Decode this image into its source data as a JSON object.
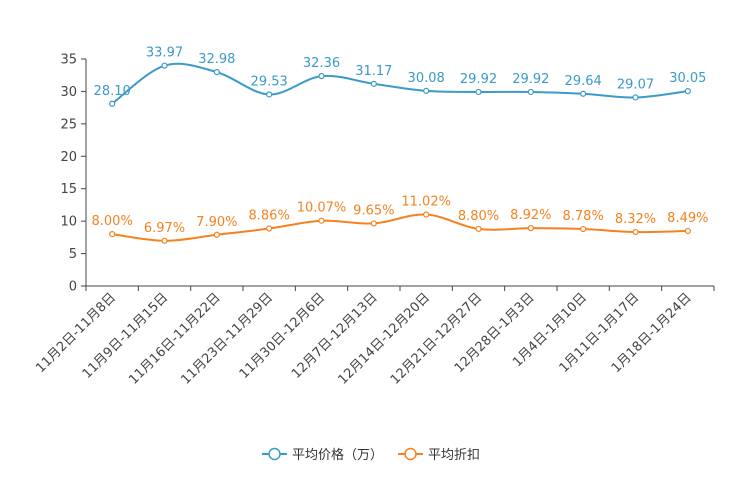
{
  "chart_data": {
    "type": "line",
    "title": "",
    "xlabel": "",
    "ylabel": "",
    "ylim": [
      0,
      35
    ],
    "yticks": [
      0,
      5,
      10,
      15,
      20,
      25,
      30,
      35
    ],
    "grid": false,
    "legend_position": "bottom-center",
    "categories": [
      "11月2日-11月8日",
      "11月9日-11月15日",
      "11月16日-11月22日",
      "11月23日-11月29日",
      "11月30日-12月6日",
      "12月7日-12月13日",
      "12月14日-12月20日",
      "12月21日-12月27日",
      "12月28日-1月3日",
      "1月4日-1月10日",
      "1月11日-1月17日",
      "1月18日-1月24日"
    ],
    "series": [
      {
        "name": "平均价格（万）",
        "color": "#3a9ac9",
        "values": [
          28.1,
          33.97,
          32.98,
          29.53,
          32.36,
          31.17,
          30.08,
          29.92,
          29.92,
          29.64,
          29.07,
          30.05
        ],
        "labels": [
          "28.10",
          "33.97",
          "32.98",
          "29.53",
          "32.36",
          "31.17",
          "30.08",
          "29.92",
          "29.92",
          "29.64",
          "29.07",
          "30.05"
        ]
      },
      {
        "name": "平均折扣",
        "color": "#f5821f",
        "values": [
          8.0,
          6.97,
          7.9,
          8.86,
          10.07,
          9.65,
          11.02,
          8.8,
          8.92,
          8.78,
          8.32,
          8.49
        ],
        "labels": [
          "8.00%",
          "6.97%",
          "7.90%",
          "8.86%",
          "10.07%",
          "9.65%",
          "11.02%",
          "8.80%",
          "8.92%",
          "8.78%",
          "8.32%",
          "8.49%"
        ]
      }
    ]
  }
}
